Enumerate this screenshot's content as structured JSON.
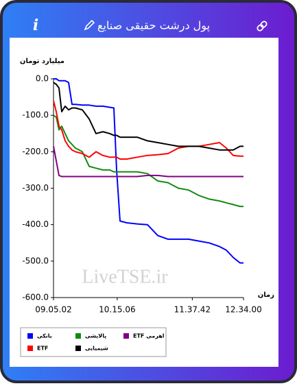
{
  "header": {
    "title": "پول درشت حقیقی صنایع"
  },
  "chart_data": {
    "type": "line",
    "ylabel": "میلیارد تومان",
    "xlabel": "زمان",
    "watermark": "LiveTSE.ir",
    "x": [
      "09.05.02",
      "09.08.03",
      "09.11.04",
      "09.14.05",
      "09.17.51",
      "09.21.38",
      "09.25.24",
      "09.29.10",
      "09.36.43",
      "09.44.16",
      "09.51.48",
      "09.59.21",
      "10.06.53",
      "10.11.25",
      "10.14.26",
      "10.18.12",
      "10.25.45",
      "10.37.04",
      "10.48.23",
      "10.59.42",
      "11.11.00",
      "11.22.19",
      "11.33.38",
      "11.44.57",
      "11.56.16",
      "12.07.35",
      "12.15.08",
      "12.22.40",
      "12.30.13",
      "12.34.00"
    ],
    "xlim": [
      "09.05.02",
      "12.34.00"
    ],
    "xticks": [
      "09.05.02",
      "10.15.06",
      "11.37.42",
      "12.34.00"
    ],
    "ylim": [
      -600,
      0
    ],
    "yticks": [
      {
        "value": 0,
        "label": "0.0"
      },
      {
        "value": -100,
        "label": "-100.0"
      },
      {
        "value": -200,
        "label": "-200.0"
      },
      {
        "value": -300,
        "label": "-300.0"
      },
      {
        "value": -400,
        "label": "-400.0"
      },
      {
        "value": -500,
        "label": "-500.0"
      },
      {
        "value": -600,
        "label": "-600.0"
      }
    ],
    "series": [
      {
        "name": "بانکی",
        "color": "#0000ff",
        "values": [
          0,
          0,
          -5,
          -5,
          -5,
          -10,
          -70,
          -70,
          -72,
          -72,
          -75,
          -75,
          -78,
          -80,
          -250,
          -390,
          -395,
          -398,
          -400,
          -430,
          -440,
          -440,
          -440,
          -445,
          -450,
          -460,
          -470,
          -490,
          -505,
          -505
        ]
      },
      {
        "name": "پالایشی",
        "color": "#128a12",
        "values": [
          -100,
          -105,
          -140,
          -130,
          -150,
          -170,
          -180,
          -190,
          -200,
          -240,
          -245,
          -250,
          -250,
          -255,
          -255,
          -255,
          -255,
          -255,
          -260,
          -280,
          -285,
          -300,
          -305,
          -320,
          -330,
          -335,
          -340,
          -345,
          -350,
          -350
        ]
      },
      {
        "name": "ETF اهرمی",
        "color": "#800080",
        "values": [
          -185,
          -225,
          -265,
          -268,
          -268,
          -268,
          -268,
          -268,
          -268,
          -268,
          -268,
          -268,
          -268,
          -268,
          -268,
          -268,
          -268,
          -268,
          -265,
          -265,
          -268,
          -268,
          -268,
          -268,
          -268,
          -268,
          -268,
          -268,
          -268,
          -268
        ]
      },
      {
        "name": "ETF",
        "color": "#ff0000",
        "values": [
          -60,
          -90,
          -130,
          -140,
          -170,
          -185,
          -195,
          -200,
          -205,
          -215,
          -200,
          -210,
          -215,
          -215,
          -215,
          -220,
          -220,
          -215,
          -210,
          -208,
          -205,
          -190,
          -185,
          -185,
          -180,
          -175,
          -190,
          -210,
          -212,
          -212
        ]
      },
      {
        "name": "شیمیایی",
        "color": "#000000",
        "values": [
          -10,
          -15,
          -25,
          -90,
          -75,
          -85,
          -80,
          -80,
          -85,
          -110,
          -150,
          -145,
          -150,
          -155,
          -155,
          -160,
          -160,
          -160,
          -170,
          -175,
          -180,
          -185,
          -185,
          -185,
          -190,
          -195,
          -195,
          -195,
          -185,
          -185
        ]
      }
    ]
  }
}
